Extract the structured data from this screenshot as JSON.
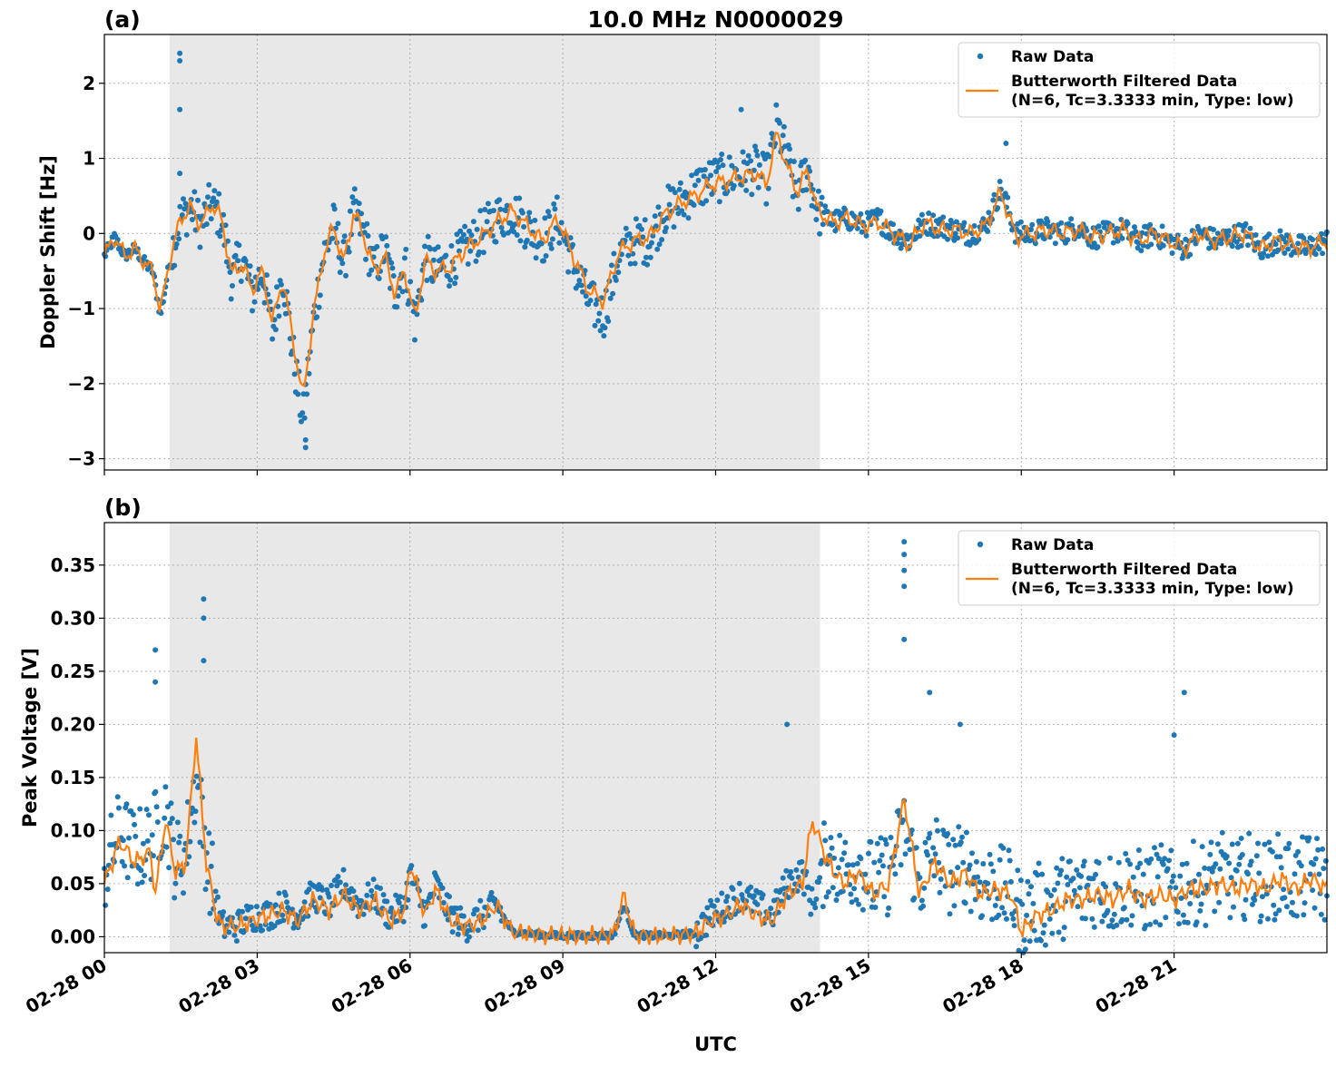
{
  "chart_data": [
    {
      "type": "scatter",
      "panel_label": "(a)",
      "title": "10.0 MHz N0000029",
      "xlabel": "",
      "ylabel": "Doppler Shift [Hz]",
      "xlim": [
        0,
        24
      ],
      "ylim": [
        -3.15,
        2.65
      ],
      "yticks": [
        -3,
        -2,
        -1,
        0,
        1,
        2
      ],
      "ytick_labels": [
        "−3",
        "−2",
        "−1",
        "0",
        "1",
        "2"
      ],
      "shaded_span": [
        1.28,
        14.05
      ],
      "grid": true,
      "legend_position": "upper right",
      "series": [
        {
          "name": "Raw Data",
          "color": "#1f77b4",
          "x": [
            0,
            0.2,
            0.4,
            0.6,
            0.8,
            0.95,
            1.1,
            1.3,
            1.5,
            1.7,
            1.9,
            2.1,
            2.3,
            2.5,
            2.7,
            2.9,
            3.1,
            3.3,
            3.5,
            3.7,
            3.9,
            4.1,
            4.3,
            4.5,
            4.7,
            4.9,
            5.1,
            5.3,
            5.5,
            5.7,
            5.9,
            6.1,
            6.3,
            6.5,
            6.8,
            7.1,
            7.4,
            7.7,
            8.0,
            8.3,
            8.6,
            8.9,
            9.2,
            9.5,
            9.8,
            10.1,
            10.4,
            10.7,
            11.0,
            11.3,
            11.6,
            11.9,
            12.2,
            12.5,
            12.8,
            13.0,
            13.2,
            13.4,
            13.6,
            13.8,
            14.0,
            14.3,
            14.6,
            14.9,
            15.2,
            15.5,
            15.8,
            16.1,
            16.4,
            16.7,
            17.0,
            17.3,
            17.6,
            17.9,
            18.2,
            18.5,
            18.8,
            19.1,
            19.4,
            19.7,
            20.0,
            20.3,
            20.6,
            20.9,
            21.2,
            21.5,
            21.8,
            22.1,
            22.4,
            22.7,
            23.0,
            23.3,
            23.6,
            24.0
          ],
          "y": [
            -0.3,
            -0.05,
            -0.3,
            -0.2,
            -0.4,
            -0.5,
            -1.1,
            -0.3,
            0.2,
            0.35,
            0.1,
            0.4,
            0.2,
            -0.6,
            -0.3,
            -0.8,
            -0.5,
            -1.3,
            -0.5,
            -1.6,
            -2.5,
            -1.2,
            -0.3,
            0.1,
            -0.4,
            0.3,
            0.0,
            -0.5,
            -0.2,
            -0.8,
            -0.4,
            -1.2,
            -0.3,
            -0.5,
            -0.4,
            -0.2,
            0.0,
            0.2,
            0.3,
            0.1,
            -0.1,
            0.2,
            -0.4,
            -0.9,
            -1.1,
            -0.3,
            -0.1,
            -0.1,
            0.3,
            0.4,
            0.6,
            0.7,
            0.75,
            0.8,
            0.85,
            0.7,
            1.45,
            1.0,
            0.5,
            0.9,
            0.3,
            0.15,
            0.2,
            0.1,
            0.2,
            0.0,
            -0.1,
            0.15,
            0.1,
            0.05,
            0.0,
            0.1,
            0.6,
            0.0,
            0.0,
            0.05,
            0.0,
            0.1,
            -0.05,
            0.0,
            0.05,
            -0.1,
            0.0,
            -0.1,
            -0.2,
            0.0,
            -0.1,
            -0.05,
            0.0,
            -0.2,
            -0.1,
            -0.15,
            -0.2,
            -0.1
          ]
        },
        {
          "name": "Butterworth Filtered Data\n(N=6, Tc=3.3333 min, Type: low)",
          "color": "#ff7f0e",
          "x": [
            0,
            0.2,
            0.4,
            0.6,
            0.8,
            0.95,
            1.1,
            1.3,
            1.5,
            1.7,
            1.9,
            2.1,
            2.3,
            2.5,
            2.7,
            2.9,
            3.1,
            3.3,
            3.5,
            3.7,
            3.9,
            4.1,
            4.3,
            4.5,
            4.7,
            4.9,
            5.1,
            5.3,
            5.5,
            5.7,
            5.9,
            6.1,
            6.3,
            6.5,
            6.8,
            7.1,
            7.4,
            7.7,
            8.0,
            8.3,
            8.6,
            8.9,
            9.2,
            9.5,
            9.8,
            10.1,
            10.4,
            10.7,
            11.0,
            11.3,
            11.6,
            11.9,
            12.2,
            12.5,
            12.8,
            13.0,
            13.2,
            13.4,
            13.6,
            13.8,
            14.0,
            14.3,
            14.6,
            14.9,
            15.2,
            15.5,
            15.8,
            16.1,
            16.4,
            16.7,
            17.0,
            17.3,
            17.6,
            17.9,
            18.2,
            18.5,
            18.8,
            19.1,
            19.4,
            19.7,
            20.0,
            20.3,
            20.6,
            20.9,
            21.2,
            21.5,
            21.8,
            22.1,
            22.4,
            22.7,
            23.0,
            23.3,
            23.6,
            24.0
          ],
          "y": [
            -0.3,
            -0.05,
            -0.3,
            -0.2,
            -0.4,
            -0.5,
            -1.05,
            -0.3,
            0.2,
            0.35,
            0.1,
            0.4,
            0.2,
            -0.55,
            -0.4,
            -0.75,
            -0.5,
            -1.2,
            -0.6,
            -1.4,
            -2.2,
            -1.1,
            -0.3,
            0.1,
            -0.4,
            0.3,
            -0.05,
            -0.5,
            -0.3,
            -0.8,
            -0.5,
            -1.15,
            -0.35,
            -0.5,
            -0.45,
            -0.2,
            -0.05,
            0.15,
            0.3,
            0.1,
            -0.1,
            0.2,
            -0.3,
            -0.75,
            -0.9,
            -0.25,
            -0.1,
            -0.05,
            0.25,
            0.4,
            0.5,
            0.65,
            0.7,
            0.75,
            0.8,
            0.65,
            1.35,
            0.9,
            0.55,
            0.85,
            0.3,
            0.15,
            0.2,
            0.1,
            0.15,
            0.0,
            -0.15,
            0.15,
            0.05,
            0.05,
            0.0,
            0.1,
            0.55,
            -0.05,
            0.0,
            0.05,
            0.0,
            0.05,
            -0.05,
            0.0,
            0.05,
            -0.1,
            0.0,
            -0.1,
            -0.2,
            0.0,
            -0.1,
            -0.05,
            0.0,
            -0.2,
            -0.1,
            -0.15,
            -0.2,
            -0.1
          ]
        }
      ]
    },
    {
      "type": "scatter",
      "panel_label": "(b)",
      "title": "",
      "xlabel": "UTC",
      "ylabel": "Peak Voltage [V]",
      "xlim": [
        0,
        24
      ],
      "ylim": [
        -0.015,
        0.39
      ],
      "yticks": [
        0.0,
        0.05,
        0.1,
        0.15,
        0.2,
        0.25,
        0.3,
        0.35
      ],
      "ytick_labels": [
        "0.00",
        "0.05",
        "0.10",
        "0.15",
        "0.20",
        "0.25",
        "0.30",
        "0.35"
      ],
      "xticks": [
        0,
        3,
        6,
        9,
        12,
        15,
        18,
        21
      ],
      "xtick_labels": [
        "02-28 00",
        "02-28 03",
        "02-28 06",
        "02-28 09",
        "02-28 12",
        "02-28 15",
        "02-28 18",
        "02-28 21"
      ],
      "shaded_span": [
        1.28,
        14.05
      ],
      "grid": true,
      "legend_position": "upper right",
      "series": [
        {
          "name": "Raw Data",
          "color": "#1f77b4",
          "x": [
            0,
            0.3,
            0.6,
            0.9,
            1.0,
            1.2,
            1.4,
            1.6,
            1.8,
            2.0,
            2.2,
            2.3,
            2.6,
            2.9,
            3.2,
            3.5,
            3.8,
            4.1,
            4.4,
            4.7,
            5.0,
            5.3,
            5.6,
            5.9,
            6.0,
            6.3,
            6.5,
            6.8,
            7.1,
            7.4,
            7.7,
            8.0,
            8.3,
            8.6,
            8.9,
            9.2,
            9.5,
            9.8,
            10.0,
            10.2,
            10.4,
            10.7,
            11.0,
            11.3,
            11.6,
            11.9,
            12.2,
            12.5,
            12.8,
            13.1,
            13.4,
            13.7,
            13.9,
            14.2,
            14.5,
            14.8,
            15.1,
            15.4,
            15.7,
            16.0,
            16.3,
            16.6,
            16.9,
            17.2,
            17.5,
            17.8,
            18.0,
            18.3,
            18.6,
            18.9,
            19.2,
            19.5,
            19.8,
            20.1,
            20.4,
            20.7,
            21.0,
            21.3,
            21.6,
            21.9,
            22.2,
            22.5,
            22.8,
            23.1,
            23.4,
            23.7,
            24.0
          ],
          "y": [
            0.06,
            0.1,
            0.08,
            0.09,
            0.1,
            0.12,
            0.07,
            0.08,
            0.15,
            0.08,
            0.03,
            0.01,
            0.01,
            0.02,
            0.02,
            0.03,
            0.02,
            0.04,
            0.03,
            0.05,
            0.03,
            0.04,
            0.02,
            0.03,
            0.06,
            0.02,
            0.05,
            0.02,
            0.01,
            0.02,
            0.03,
            0.005,
            0.003,
            0.002,
            0.001,
            0.001,
            0.001,
            0.001,
            0.002,
            0.03,
            0.002,
            0.001,
            0.001,
            0.002,
            0.003,
            0.02,
            0.03,
            0.04,
            0.03,
            0.02,
            0.05,
            0.06,
            0.03,
            0.08,
            0.06,
            0.07,
            0.05,
            0.06,
            0.1,
            0.05,
            0.08,
            0.06,
            0.07,
            0.05,
            0.05,
            0.04,
            0.02,
            0.03,
            0.03,
            0.04,
            0.04,
            0.05,
            0.04,
            0.05,
            0.04,
            0.05,
            0.04,
            0.05,
            0.05,
            0.06,
            0.05,
            0.06,
            0.05,
            0.06,
            0.05,
            0.06,
            0.05
          ]
        },
        {
          "name": "Butterworth Filtered Data\n(N=6, Tc=3.3333 min, Type: low)",
          "color": "#ff7f0e",
          "x": [
            0,
            0.3,
            0.6,
            0.9,
            1.0,
            1.2,
            1.4,
            1.6,
            1.8,
            2.0,
            2.2,
            2.3,
            2.6,
            2.9,
            3.2,
            3.5,
            3.8,
            4.1,
            4.4,
            4.7,
            5.0,
            5.3,
            5.6,
            5.9,
            6.0,
            6.3,
            6.5,
            6.8,
            7.1,
            7.4,
            7.7,
            8.0,
            8.3,
            8.6,
            8.9,
            9.2,
            9.5,
            9.8,
            10.0,
            10.2,
            10.4,
            10.7,
            11.0,
            11.3,
            11.6,
            11.9,
            12.2,
            12.5,
            12.8,
            13.1,
            13.4,
            13.7,
            13.9,
            14.2,
            14.5,
            14.8,
            15.1,
            15.4,
            15.7,
            16.0,
            16.3,
            16.6,
            16.9,
            17.2,
            17.5,
            17.8,
            18.0,
            18.3,
            18.6,
            18.9,
            19.2,
            19.5,
            19.8,
            20.1,
            20.4,
            20.7,
            21.0,
            21.3,
            21.6,
            21.9,
            22.2,
            22.5,
            22.8,
            23.1,
            23.4,
            23.7,
            24.0
          ],
          "y": [
            0.05,
            0.09,
            0.07,
            0.08,
            0.04,
            0.11,
            0.06,
            0.07,
            0.19,
            0.07,
            0.02,
            0.01,
            0.01,
            0.015,
            0.02,
            0.025,
            0.015,
            0.035,
            0.025,
            0.04,
            0.025,
            0.035,
            0.015,
            0.025,
            0.07,
            0.02,
            0.045,
            0.015,
            0.01,
            0.015,
            0.03,
            0.005,
            0.003,
            0.002,
            0.001,
            0.001,
            0.001,
            0.001,
            0.002,
            0.04,
            0.002,
            0.001,
            0.001,
            0.002,
            0.003,
            0.015,
            0.02,
            0.03,
            0.02,
            0.015,
            0.04,
            0.05,
            0.11,
            0.07,
            0.05,
            0.06,
            0.04,
            0.05,
            0.13,
            0.04,
            0.07,
            0.05,
            0.06,
            0.04,
            0.045,
            0.04,
            0.005,
            0.02,
            0.025,
            0.035,
            0.035,
            0.04,
            0.035,
            0.045,
            0.035,
            0.04,
            0.035,
            0.045,
            0.045,
            0.05,
            0.045,
            0.05,
            0.045,
            0.055,
            0.045,
            0.055,
            0.045
          ]
        }
      ]
    }
  ]
}
